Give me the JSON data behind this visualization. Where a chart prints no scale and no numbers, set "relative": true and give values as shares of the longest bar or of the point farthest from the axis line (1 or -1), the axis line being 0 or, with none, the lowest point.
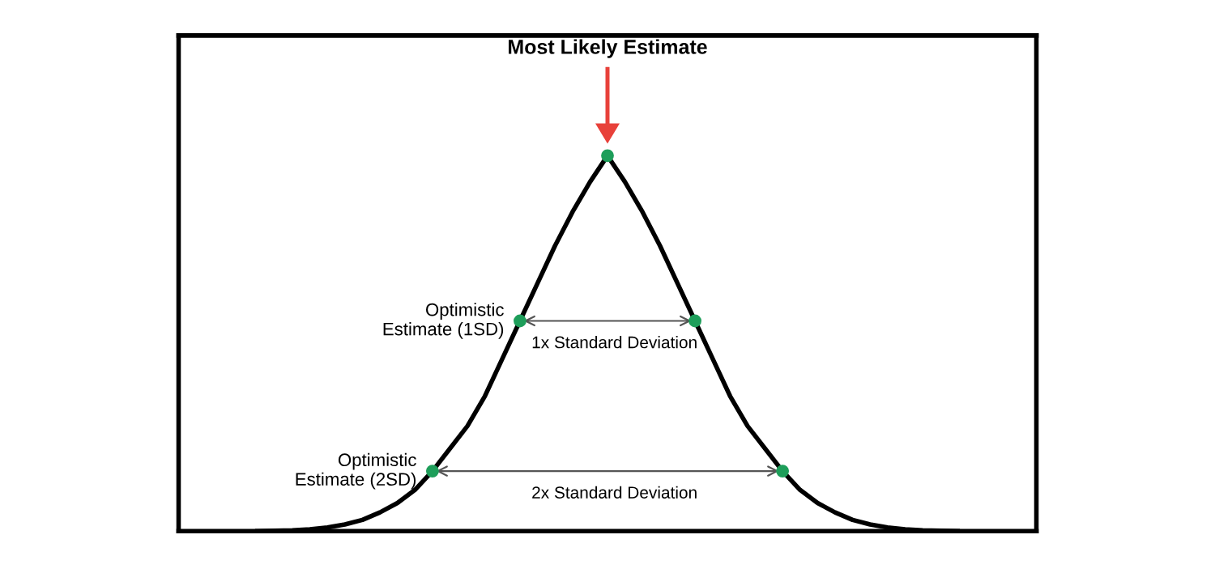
{
  "chart_data": {
    "type": "line",
    "relative": true,
    "categories": [
      null,
      null,
      null,
      null,
      null,
      null,
      null,
      null,
      null,
      null,
      null,
      null,
      null,
      null,
      null,
      null,
      null,
      null,
      null,
      null,
      null,
      null,
      null,
      null,
      null,
      null,
      null,
      null,
      null,
      null,
      null,
      null,
      null,
      null,
      null,
      null,
      null,
      null,
      null,
      null,
      null
    ],
    "series": [
      {
        "color": "#000000",
        "values": [
          0,
          0.001,
          0.002,
          0.005,
          0.01,
          0.018,
          0.03,
          0.05,
          0.075,
          0.11,
          0.16,
          0.22,
          0.28,
          0.36,
          0.46,
          0.56,
          0.66,
          0.76,
          0.85,
          0.93,
          1,
          0.93,
          0.85,
          0.76,
          0.66,
          0.56,
          0.46,
          0.36,
          0.28,
          0.22,
          0.16,
          0.11,
          0.075,
          0.05,
          0.03,
          0.018,
          0.01,
          0.005,
          0.002,
          0.001,
          0
        ]
      }
    ],
    "annotations": [
      "Most Likely Estimate",
      "Optimistic\nEstimate (1SD)",
      "1x Standard Deviation",
      "Optimistic\nEstimate (2SD)",
      "2x Standard Deviation"
    ]
  }
}
